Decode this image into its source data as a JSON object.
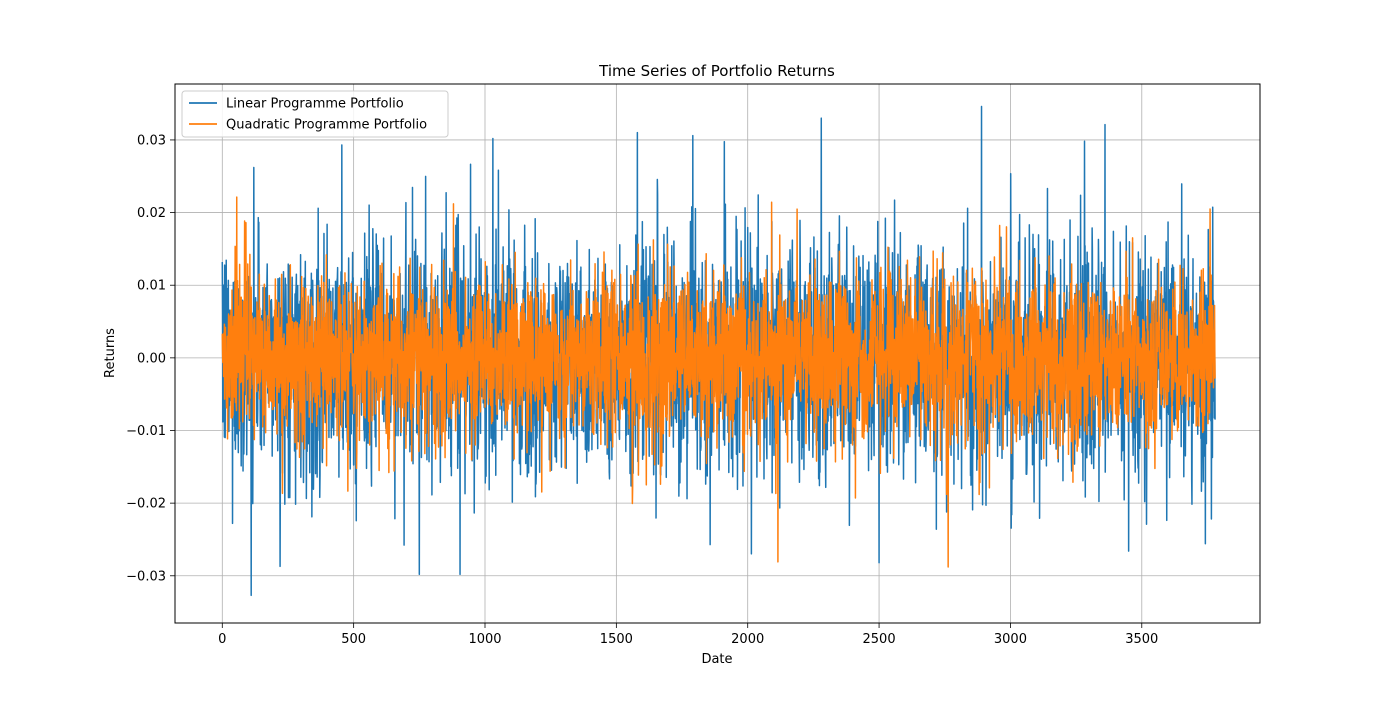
{
  "chart_data": {
    "type": "line",
    "title": "Time Series of Portfolio Returns",
    "xlabel": "Date",
    "ylabel": "Returns",
    "xlim": [
      -180,
      3950
    ],
    "ylim": [
      -0.0365,
      0.0377
    ],
    "grid": true,
    "legend_position": "upper-left",
    "x_ticks": [
      0,
      500,
      1000,
      1500,
      2000,
      2500,
      3000,
      3500
    ],
    "x_tick_labels": [
      "0",
      "500",
      "1000",
      "1500",
      "2000",
      "2500",
      "3000",
      "3500"
    ],
    "y_ticks": [
      -0.03,
      -0.02,
      -0.01,
      0.0,
      0.01,
      0.02,
      0.03
    ],
    "y_tick_labels": [
      "−0.03",
      "−0.02",
      "−0.01",
      "0.00",
      "0.01",
      "0.02",
      "0.03"
    ],
    "n_points": 3780,
    "series": [
      {
        "name": "Linear Programme Portfolio",
        "color": "#1f77b4",
        "values_summary": "daily returns, x = 0..3779",
        "std": 0.0078,
        "extremes": [
          {
            "x": 0,
            "y": 0.0132
          },
          {
            "x": 110,
            "y": -0.0327
          },
          {
            "x": 120,
            "y": 0.0262
          },
          {
            "x": 220,
            "y": -0.0287
          },
          {
            "x": 455,
            "y": 0.0293
          },
          {
            "x": 750,
            "y": -0.0298
          },
          {
            "x": 905,
            "y": -0.0298
          },
          {
            "x": 1030,
            "y": 0.0302
          },
          {
            "x": 1580,
            "y": 0.031
          },
          {
            "x": 2280,
            "y": 0.033
          },
          {
            "x": 2500,
            "y": -0.0282
          },
          {
            "x": 2890,
            "y": 0.0346
          },
          {
            "x": 3360,
            "y": 0.0321
          },
          {
            "x": 3450,
            "y": -0.0266
          },
          {
            "x": 3779,
            "y": -0.0085
          }
        ]
      },
      {
        "name": "Quadratic Programme Portfolio",
        "color": "#ff7f0e",
        "values_summary": "daily returns, x = 0..3779",
        "std": 0.0055,
        "extremes": [
          {
            "x": 90,
            "y": 0.0186
          },
          {
            "x": 880,
            "y": 0.0212
          },
          {
            "x": 2410,
            "y": -0.0193
          },
          {
            "x": 2920,
            "y": -0.0179
          },
          {
            "x": 3760,
            "y": 0.0205
          }
        ]
      }
    ]
  }
}
